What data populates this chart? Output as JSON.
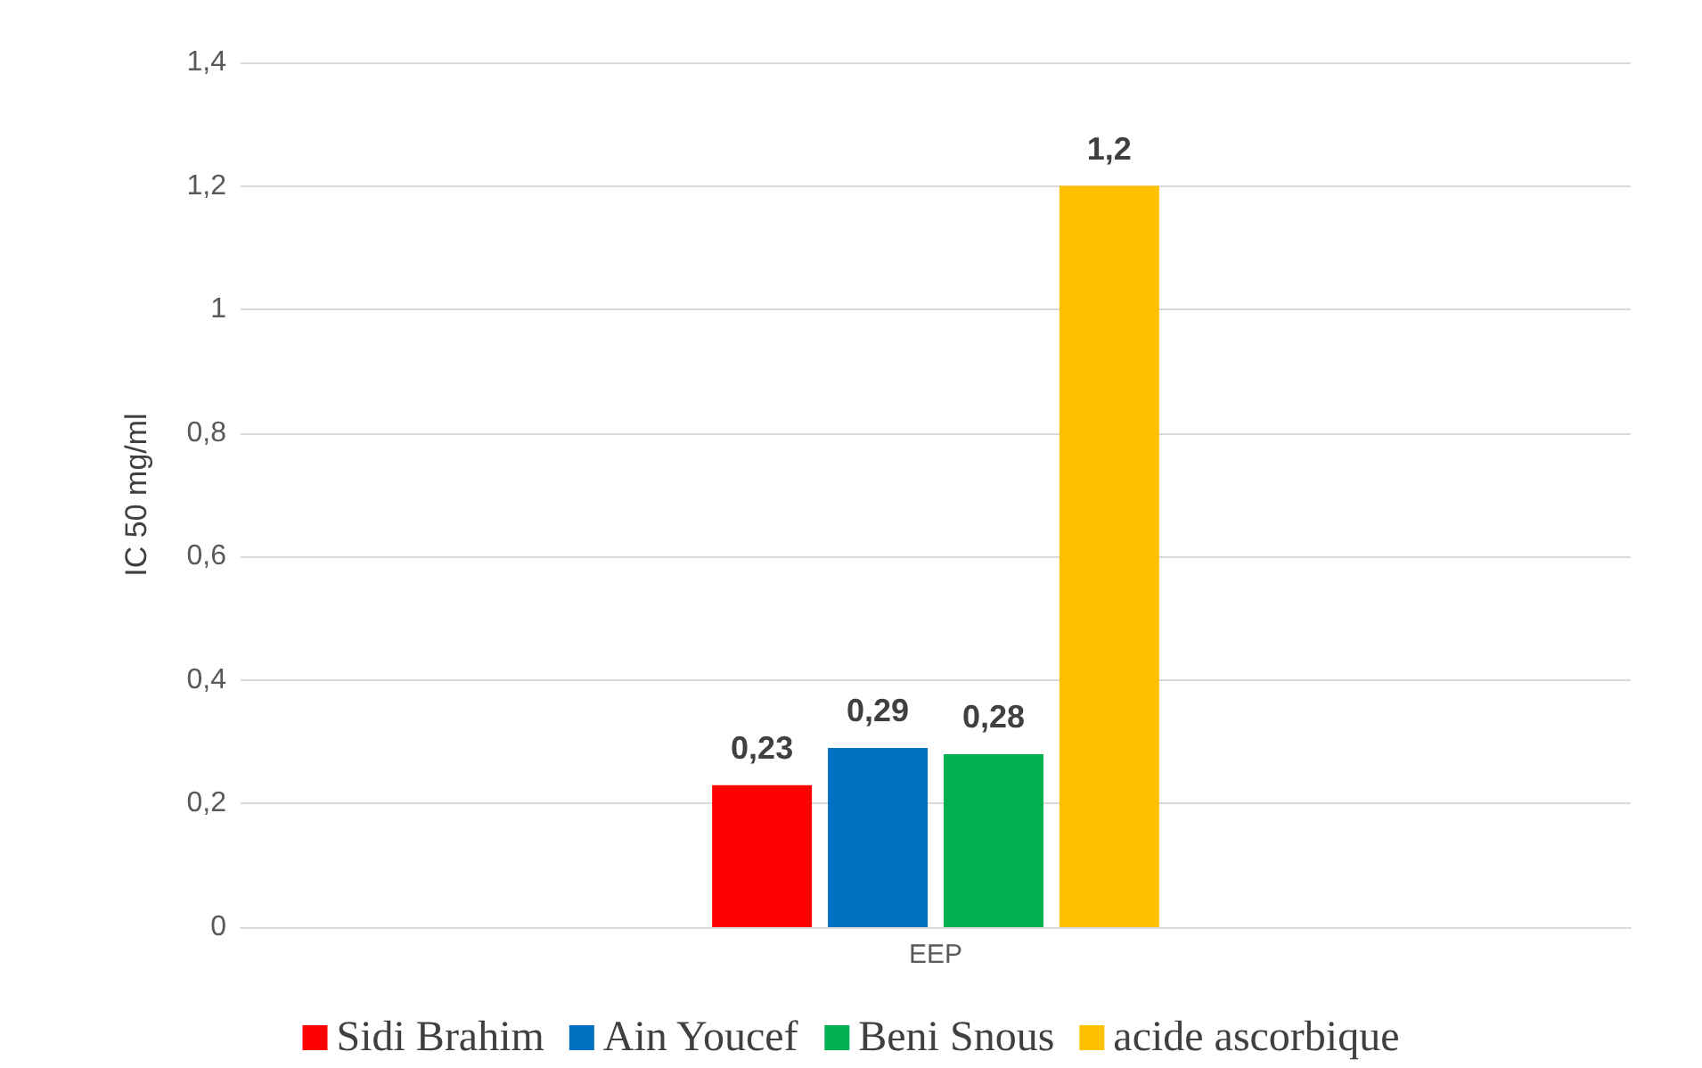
{
  "chart_data": {
    "type": "bar",
    "ylabel": "IC 50 mg/ml",
    "categories": [
      "EEP"
    ],
    "series": [
      {
        "name": "Sidi Brahim",
        "color": "#ff0000",
        "values": [
          0.23
        ],
        "value_labels": [
          "0,23"
        ]
      },
      {
        "name": "Ain Youcef",
        "color": "#0070c0",
        "values": [
          0.29
        ],
        "value_labels": [
          "0,29"
        ]
      },
      {
        "name": "Beni Snous",
        "color": "#00b050",
        "values": [
          0.28
        ],
        "value_labels": [
          "0,28"
        ]
      },
      {
        "name": "acide ascorbique",
        "color": "#ffc000",
        "values": [
          1.2
        ],
        "value_labels": [
          "1,2"
        ]
      }
    ],
    "ylim": [
      0,
      1.4
    ],
    "yticks": [
      {
        "value": 0,
        "label": "0"
      },
      {
        "value": 0.2,
        "label": "0,2"
      },
      {
        "value": 0.4,
        "label": "0,4"
      },
      {
        "value": 0.6,
        "label": "0,6"
      },
      {
        "value": 0.8,
        "label": "0,8"
      },
      {
        "value": 1,
        "label": "1"
      },
      {
        "value": 1.2,
        "label": "1,2"
      },
      {
        "value": 1.4,
        "label": "1,4"
      }
    ],
    "grid": "y",
    "legend": "bottom"
  }
}
